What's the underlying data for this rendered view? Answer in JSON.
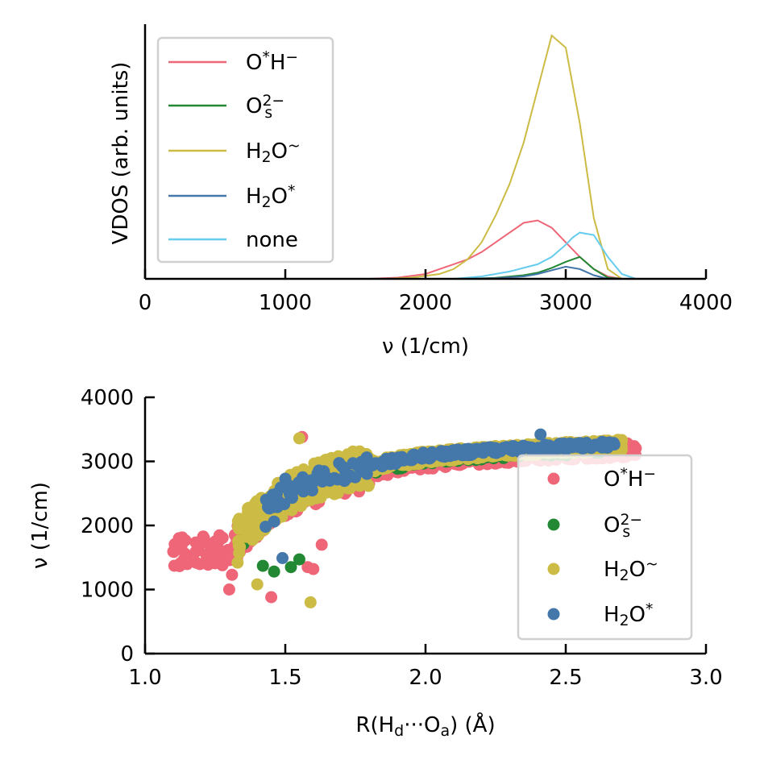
{
  "chart_data": [
    {
      "type": "line",
      "title": "",
      "xlabel": "ν (1/cm)",
      "ylabel": "VDOS (arb. units)",
      "xlim": [
        0,
        4000
      ],
      "ylim": [
        0,
        1
      ],
      "xticks": [
        0,
        1000,
        2000,
        3000,
        4000
      ],
      "xtick_labels": [
        "0",
        "1000",
        "2000",
        "3000",
        "4000"
      ],
      "grid": false,
      "legend_position": "top-left",
      "series": [
        {
          "key": "ohm",
          "name": "O*H⁻",
          "color": "#EE6677",
          "x": [
            1600,
            1800,
            2000,
            2100,
            2200,
            2300,
            2400,
            2500,
            2600,
            2700,
            2800,
            2900,
            3000,
            3100,
            3200,
            3300,
            3400
          ],
          "y": [
            0.0,
            0.005,
            0.02,
            0.04,
            0.06,
            0.08,
            0.11,
            0.15,
            0.19,
            0.23,
            0.24,
            0.21,
            0.15,
            0.09,
            0.04,
            0.01,
            0.0
          ]
        },
        {
          "key": "os2",
          "name": "O_s^2−",
          "color": "#228833",
          "x": [
            2300,
            2500,
            2700,
            2800,
            2900,
            3000,
            3050,
            3100,
            3200,
            3300,
            3400
          ],
          "y": [
            0.0,
            0.004,
            0.015,
            0.025,
            0.045,
            0.07,
            0.08,
            0.09,
            0.04,
            0.005,
            0.0
          ]
        },
        {
          "key": "h2ot",
          "name": "H₂O~",
          "color": "#CCBB44",
          "x": [
            1700,
            1900,
            2100,
            2200,
            2300,
            2400,
            2500,
            2600,
            2700,
            2800,
            2900,
            3000,
            3100,
            3200,
            3300,
            3400
          ],
          "y": [
            0.0,
            0.005,
            0.02,
            0.04,
            0.08,
            0.15,
            0.26,
            0.39,
            0.56,
            0.78,
            1.0,
            0.95,
            0.64,
            0.25,
            0.04,
            0.0
          ]
        },
        {
          "key": "h2os",
          "name": "H₂O*",
          "color": "#4477AA",
          "x": [
            2300,
            2500,
            2700,
            2800,
            2900,
            3000,
            3100,
            3200,
            3300
          ],
          "y": [
            0.0,
            0.003,
            0.01,
            0.02,
            0.035,
            0.05,
            0.04,
            0.015,
            0.0
          ]
        },
        {
          "key": "none",
          "name": "none",
          "color": "#66CCEE",
          "x": [
            2200,
            2400,
            2600,
            2700,
            2800,
            2900,
            3000,
            3050,
            3100,
            3200,
            3300,
            3400,
            3500
          ],
          "y": [
            0.0,
            0.01,
            0.03,
            0.045,
            0.06,
            0.09,
            0.14,
            0.17,
            0.19,
            0.18,
            0.09,
            0.02,
            0.0
          ]
        }
      ]
    },
    {
      "type": "scatter",
      "title": "",
      "xlabel": "R(H_d···O_a) (Å)",
      "ylabel": "ν (1/cm)",
      "xlim": [
        1.0,
        3.0
      ],
      "ylim": [
        0,
        4000
      ],
      "xticks": [
        1.0,
        1.5,
        2.0,
        2.5,
        3.0
      ],
      "xtick_labels": [
        "1.0",
        "1.5",
        "2.0",
        "2.5",
        "3.0"
      ],
      "yticks": [
        0,
        1000,
        2000,
        3000,
        4000
      ],
      "ytick_labels": [
        "0",
        "1000",
        "2000",
        "3000",
        "4000"
      ],
      "grid": false,
      "legend_position": "bottom-right",
      "trend": {
        "x": [
          1.3,
          1.4,
          1.5,
          1.6,
          1.7,
          1.8,
          1.9,
          2.0,
          2.2,
          2.4,
          2.6,
          2.7
        ],
        "y": [
          1700,
          2100,
          2450,
          2650,
          2800,
          2900,
          2980,
          3050,
          3120,
          3170,
          3210,
          3230
        ]
      },
      "series": [
        {
          "key": "ohm",
          "name": "O*H⁻",
          "color": "#EE6677",
          "xrange": [
            1.1,
            2.75
          ],
          "outliers": [
            [
              1.13,
              1680
            ],
            [
              1.23,
              1700
            ],
            [
              1.25,
              1750
            ],
            [
              1.29,
              1500
            ],
            [
              1.3,
              1000
            ],
            [
              1.31,
              1230
            ],
            [
              1.32,
              1850
            ],
            [
              1.45,
              880
            ],
            [
              1.56,
              3380
            ],
            [
              1.58,
              1350
            ],
            [
              1.6,
              1320
            ],
            [
              1.63,
              1700
            ],
            [
              2.72,
              3280
            ]
          ]
        },
        {
          "key": "os2",
          "name": "O_s^2−",
          "color": "#228833",
          "xrange": [
            1.35,
            2.65
          ],
          "outliers": [
            [
              1.42,
              1370
            ],
            [
              1.46,
              1280
            ],
            [
              1.52,
              1350
            ],
            [
              1.55,
              1470
            ]
          ]
        },
        {
          "key": "h2ot",
          "name": "H₂O~",
          "color": "#CCBB44",
          "xrange": [
            1.33,
            2.7
          ],
          "outliers": [
            [
              1.33,
              1420
            ],
            [
              1.4,
              1080
            ],
            [
              1.55,
              3360
            ],
            [
              1.59,
              800
            ]
          ]
        },
        {
          "key": "h2os",
          "name": "H₂O*",
          "color": "#4477AA",
          "xrange": [
            1.43,
            2.68
          ],
          "outliers": [
            [
              1.46,
              2060
            ],
            [
              1.49,
              1490
            ],
            [
              1.43,
              1980
            ],
            [
              1.47,
              2500
            ],
            [
              1.5,
              2730
            ],
            [
              2.41,
              3420
            ]
          ]
        }
      ]
    }
  ]
}
